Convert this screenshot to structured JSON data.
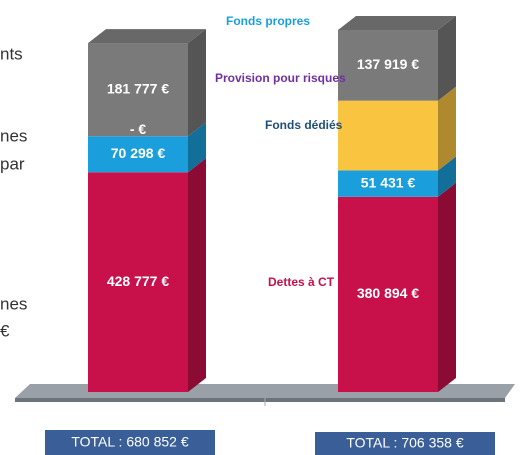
{
  "chart_data": {
    "type": "stacked-bar-3d",
    "categories": [
      null,
      null
    ],
    "series": [
      {
        "name": "Dettes à CT",
        "color": "#c8104a",
        "values": [
          428777,
          380894
        ],
        "value_labels": [
          "428 777 €",
          "380 894 €"
        ]
      },
      {
        "name": "Fonds dédiés",
        "color": "#1a9fdc",
        "values": [
          70298,
          51431
        ],
        "value_labels": [
          "70 298 €",
          "51 431 €"
        ]
      },
      {
        "name": "Provision pour risques",
        "color": "#f9c440",
        "values": [
          0,
          136114
        ],
        "value_labels": [
          "-  €",
          null
        ]
      },
      {
        "name": "Fonds propres",
        "color": "#7a7a7a",
        "values": [
          181777,
          137919
        ],
        "value_labels": [
          "181 777 €",
          "137 919 €"
        ]
      }
    ],
    "totals": [
      "TOTAL : 680 852 €",
      "TOTAL : 706 358 €"
    ],
    "left_fragments": [
      "nts",
      "nes",
      "par",
      "nes",
      "€"
    ]
  }
}
